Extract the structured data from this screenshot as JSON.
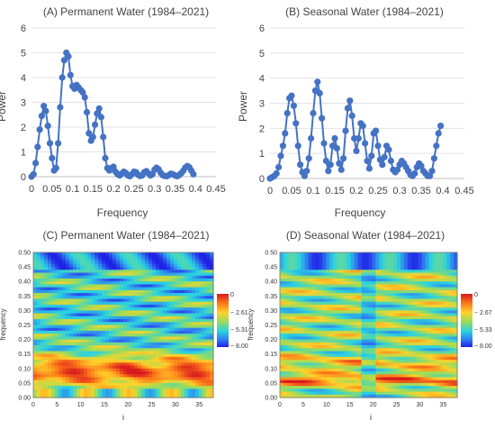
{
  "chart_data": [
    {
      "id": "A",
      "type": "line",
      "title": "(A) Permanent Water (1984–2021)",
      "xlabel": "Frequency",
      "ylabel": "Power",
      "xlim": [
        0,
        0.45
      ],
      "ylim": [
        0,
        6
      ],
      "xticks": [
        0,
        0.05,
        0.1,
        0.15,
        0.2,
        0.25,
        0.3,
        0.35,
        0.4,
        0.45
      ],
      "xtick_labels": [
        "0",
        "0.05",
        "0.1",
        "0.15",
        "0.2",
        "0.25",
        "0.3",
        "0.35",
        "0.4",
        "0.45"
      ],
      "yticks": [
        0,
        1,
        2,
        3,
        4,
        5,
        6
      ],
      "ytick_labels": [
        "0",
        "1",
        "2",
        "3",
        "4",
        "5",
        "6"
      ],
      "grid": "horizontal",
      "color": "#4472C4",
      "x": [
        0.0,
        0.005,
        0.01,
        0.015,
        0.02,
        0.025,
        0.03,
        0.035,
        0.04,
        0.045,
        0.05,
        0.055,
        0.06,
        0.065,
        0.07,
        0.075,
        0.08,
        0.085,
        0.09,
        0.095,
        0.1,
        0.105,
        0.11,
        0.115,
        0.12,
        0.125,
        0.13,
        0.135,
        0.14,
        0.145,
        0.15,
        0.155,
        0.16,
        0.165,
        0.17,
        0.175,
        0.18,
        0.185,
        0.19,
        0.195,
        0.2,
        0.205,
        0.21,
        0.215,
        0.22,
        0.225,
        0.23,
        0.235,
        0.24,
        0.245,
        0.25,
        0.255,
        0.26,
        0.265,
        0.27,
        0.275,
        0.28,
        0.285,
        0.29,
        0.295,
        0.3,
        0.305,
        0.31,
        0.315,
        0.32,
        0.325,
        0.33,
        0.335,
        0.34,
        0.345,
        0.35,
        0.355,
        0.36,
        0.365,
        0.37,
        0.375,
        0.38,
        0.385,
        0.39,
        0.395
      ],
      "y": [
        0.0,
        0.1,
        0.55,
        1.2,
        1.9,
        2.45,
        2.85,
        2.65,
        2.05,
        1.35,
        0.75,
        0.25,
        0.35,
        1.35,
        2.8,
        4.0,
        4.7,
        5.0,
        4.85,
        4.1,
        3.65,
        3.55,
        3.7,
        3.6,
        3.5,
        3.4,
        3.2,
        2.6,
        1.75,
        1.45,
        1.6,
        2.1,
        2.55,
        2.75,
        2.4,
        1.6,
        0.75,
        0.35,
        0.25,
        0.35,
        0.4,
        0.2,
        0.1,
        0.05,
        0.12,
        0.2,
        0.15,
        0.05,
        0.02,
        0.1,
        0.2,
        0.18,
        0.08,
        0.03,
        0.05,
        0.18,
        0.22,
        0.14,
        0.05,
        0.1,
        0.28,
        0.36,
        0.3,
        0.16,
        0.06,
        0.03,
        0.02,
        0.06,
        0.12,
        0.1,
        0.05,
        0.02,
        0.06,
        0.14,
        0.24,
        0.36,
        0.43,
        0.38,
        0.24,
        0.1
      ]
    },
    {
      "id": "B",
      "type": "line",
      "title": "(B) Seasonal Water (1984–2021)",
      "xlabel": "Frequency",
      "ylabel": "Power",
      "xlim": [
        0,
        0.45
      ],
      "ylim": [
        0,
        6
      ],
      "xticks": [
        0,
        0.05,
        0.1,
        0.15,
        0.2,
        0.25,
        0.3,
        0.35,
        0.4,
        0.45
      ],
      "xtick_labels": [
        "0",
        "0.05",
        "0.1",
        "0.15",
        "0.2",
        "0.25",
        "0.3",
        "0.35",
        "0.4",
        "0.45"
      ],
      "yticks": [
        0,
        1,
        2,
        3,
        4,
        5,
        6
      ],
      "ytick_labels": [
        "0",
        "1",
        "2",
        "3",
        "4",
        "5",
        "6"
      ],
      "grid": "horizontal",
      "color": "#4472C4",
      "x": [
        0.0,
        0.005,
        0.01,
        0.015,
        0.02,
        0.025,
        0.03,
        0.035,
        0.04,
        0.045,
        0.05,
        0.055,
        0.06,
        0.065,
        0.07,
        0.075,
        0.08,
        0.085,
        0.09,
        0.095,
        0.1,
        0.105,
        0.11,
        0.115,
        0.12,
        0.125,
        0.13,
        0.135,
        0.14,
        0.145,
        0.15,
        0.155,
        0.16,
        0.165,
        0.17,
        0.175,
        0.18,
        0.185,
        0.19,
        0.195,
        0.2,
        0.205,
        0.21,
        0.215,
        0.22,
        0.225,
        0.23,
        0.235,
        0.24,
        0.245,
        0.25,
        0.255,
        0.26,
        0.265,
        0.27,
        0.275,
        0.28,
        0.285,
        0.29,
        0.295,
        0.3,
        0.305,
        0.31,
        0.315,
        0.32,
        0.325,
        0.33,
        0.335,
        0.34,
        0.345,
        0.35,
        0.355,
        0.36,
        0.365,
        0.37,
        0.375,
        0.38,
        0.385,
        0.39,
        0.395
      ],
      "y": [
        0.0,
        0.05,
        0.1,
        0.2,
        0.45,
        0.9,
        1.3,
        1.8,
        2.6,
        3.2,
        3.3,
        2.9,
        2.2,
        1.3,
        0.55,
        0.25,
        0.1,
        0.3,
        0.8,
        1.6,
        2.6,
        3.5,
        3.85,
        3.4,
        2.4,
        1.4,
        0.7,
        0.3,
        0.55,
        1.3,
        1.6,
        1.2,
        0.6,
        0.35,
        0.8,
        1.9,
        2.8,
        3.1,
        2.5,
        1.6,
        1.1,
        1.6,
        2.2,
        2.1,
        1.4,
        0.7,
        0.4,
        0.9,
        1.8,
        1.9,
        1.3,
        0.75,
        0.55,
        0.85,
        1.3,
        1.15,
        0.7,
        0.35,
        0.25,
        0.35,
        0.55,
        0.7,
        0.6,
        0.45,
        0.3,
        0.15,
        0.1,
        0.2,
        0.45,
        0.6,
        0.5,
        0.3,
        0.2,
        0.1,
        0.1,
        0.3,
        0.8,
        1.3,
        1.8,
        2.1
      ]
    },
    {
      "id": "C",
      "type": "heatmap",
      "title": "(C) Permanent Water (1984–2021)",
      "xlabel": "i",
      "ylabel": "frequency",
      "xlim": [
        0,
        38
      ],
      "ylim": [
        0,
        0.5
      ],
      "xtick_labels": [
        "0",
        "5",
        "10",
        "15",
        "20",
        "25",
        "30",
        "35"
      ],
      "ytick_labels": [
        "0.00",
        "0.05",
        "0.10",
        "0.15",
        "0.20",
        "0.25",
        "0.30",
        "0.35",
        "0.40",
        "0.45",
        "0.50"
      ],
      "colorbar_labels": [
        "0",
        "− 2.61",
        "− 5.31",
        "− 8.00"
      ],
      "colorbar_values": [
        0,
        -2.61,
        -5.31,
        -8.0
      ]
    },
    {
      "id": "D",
      "type": "heatmap",
      "title": "(D) Seasonal Water (1984–2021)",
      "xlabel": "i",
      "ylabel": "frequency",
      "xlim": [
        0,
        38
      ],
      "ylim": [
        0,
        0.5
      ],
      "xtick_labels": [
        "0",
        "5",
        "10",
        "15",
        "20",
        "25",
        "30",
        "35"
      ],
      "ytick_labels": [
        "0.00",
        "0.05",
        "0.10",
        "0.15",
        "0.20",
        "0.25",
        "0.30",
        "0.35",
        "0.40",
        "0.45",
        "0.50"
      ],
      "colorbar_labels": [
        "0",
        "− 2.67",
        "− 5.33",
        "− 8.00"
      ],
      "colorbar_values": [
        0,
        -2.67,
        -5.33,
        -8.0
      ]
    }
  ]
}
